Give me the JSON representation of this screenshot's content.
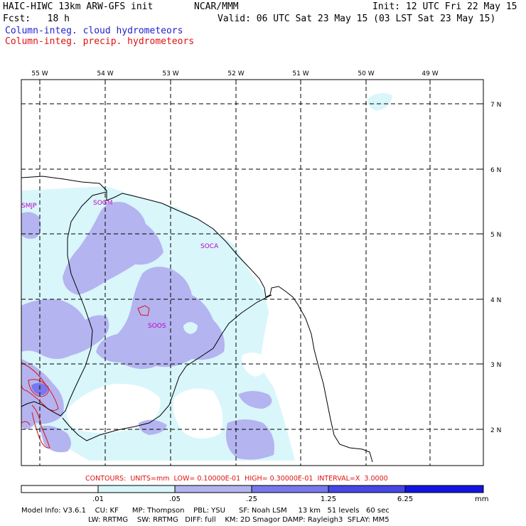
{
  "header": {
    "model_line": "HAIC-HIWC 13km ARW-GFS init",
    "org": "NCAR/MMM",
    "init": "Init: 12 UTC Fri 22 May 15",
    "fcst": "Fcst:   18 h",
    "valid": "Valid: 06 UTC Sat 23 May 15 (03 LST Sat 23 May 15)",
    "field1": "Column-integ. cloud hydrometeors",
    "field2": "Column-integ. precip. hydrometeors"
  },
  "map": {
    "lon_labels": [
      "55 W",
      "54 W",
      "53 W",
      "52 W",
      "51 W",
      "50 W",
      "49 W"
    ],
    "lat_labels": [
      "7 N",
      "6 N",
      "5 N",
      "4 N",
      "3 N",
      "2 N"
    ],
    "stations": [
      "SMJP",
      "SOGM",
      "SOCA",
      "SOOS"
    ]
  },
  "contour_info": "CONTOURS:  UNITS=mm  LOW= 0.10000E-01  HIGH= 0.30000E-01  INTERVAL=X  3.0000",
  "colorbar": {
    "ticks": [
      ".01",
      ".05",
      ".25",
      "1.25",
      "6.25"
    ],
    "unit": "mm",
    "colors": [
      "#ffffff",
      "#d9f6fb",
      "#b4b4f0",
      "#7878ec",
      "#4646e6",
      "#1414e0"
    ]
  },
  "footer": {
    "line1": "Model Info: V3.6.1    CU: KF      MP: Thompson    PBL: YSU      SF: Noah LSM     13 km   51 levels   60 sec",
    "line2": "LW: RRTMG    SW: RRTMG   DIFF: full    KM: 2D Smagor DAMP: Rayleigh3  SFLAY: MM5"
  }
}
